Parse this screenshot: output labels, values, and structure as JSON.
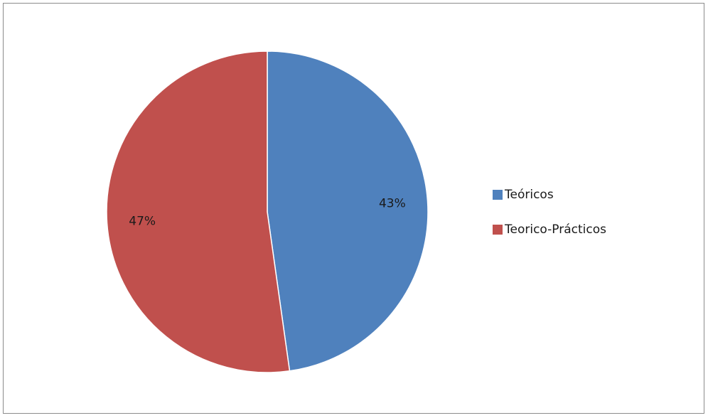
{
  "chart_data": {
    "type": "pie",
    "categories": [
      "Teóricos",
      "Teorico-Prácticos"
    ],
    "values": [
      43,
      47
    ],
    "data_labels": [
      "43%",
      "47%"
    ],
    "colors": [
      "#4f81bd",
      "#c0504d"
    ],
    "legend_position": "right"
  },
  "legend": {
    "items": [
      {
        "label": "Teóricos",
        "color": "#4f81bd"
      },
      {
        "label": "Teorico-Prácticos",
        "color": "#c0504d"
      }
    ]
  }
}
